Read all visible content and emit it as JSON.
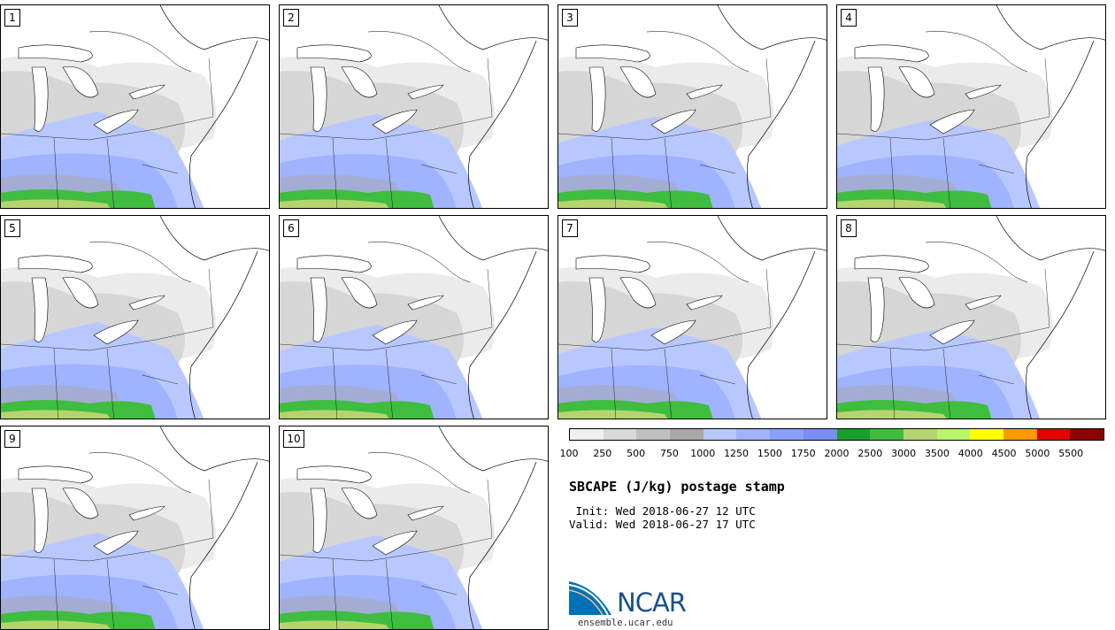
{
  "panels": [
    {
      "label": "1"
    },
    {
      "label": "2"
    },
    {
      "label": "3"
    },
    {
      "label": "4"
    },
    {
      "label": "5"
    },
    {
      "label": "6"
    },
    {
      "label": "7"
    },
    {
      "label": "8"
    },
    {
      "label": "9"
    },
    {
      "label": "10"
    }
  ],
  "colorbar": {
    "ticks": [
      "100",
      "250",
      "500",
      "750",
      "1000",
      "1250",
      "1500",
      "1750",
      "2000",
      "2500",
      "3000",
      "3500",
      "4000",
      "4500",
      "5000",
      "5500"
    ],
    "colors": [
      "#f0f0f0",
      "#d9d9d9",
      "#c0c0c0",
      "#a8a8a8",
      "#b8c8ff",
      "#9fb3ff",
      "#8aa0ff",
      "#7a8cf5",
      "#16a02a",
      "#3ebd3e",
      "#b5d470",
      "#b8f56a",
      "#ffff00",
      "#ff9900",
      "#e60000",
      "#8b0000"
    ]
  },
  "title": "SBCAPE (J/kg) postage stamp",
  "init": " Init: Wed 2018-06-27 12 UTC",
  "valid": "Valid: Wed 2018-06-27 17 UTC",
  "logo": {
    "text": "NCAR",
    "colors": {
      "arc": "#0070b8",
      "text": "#1b4f8c"
    }
  },
  "site": "ensemble.ucar.edu"
}
